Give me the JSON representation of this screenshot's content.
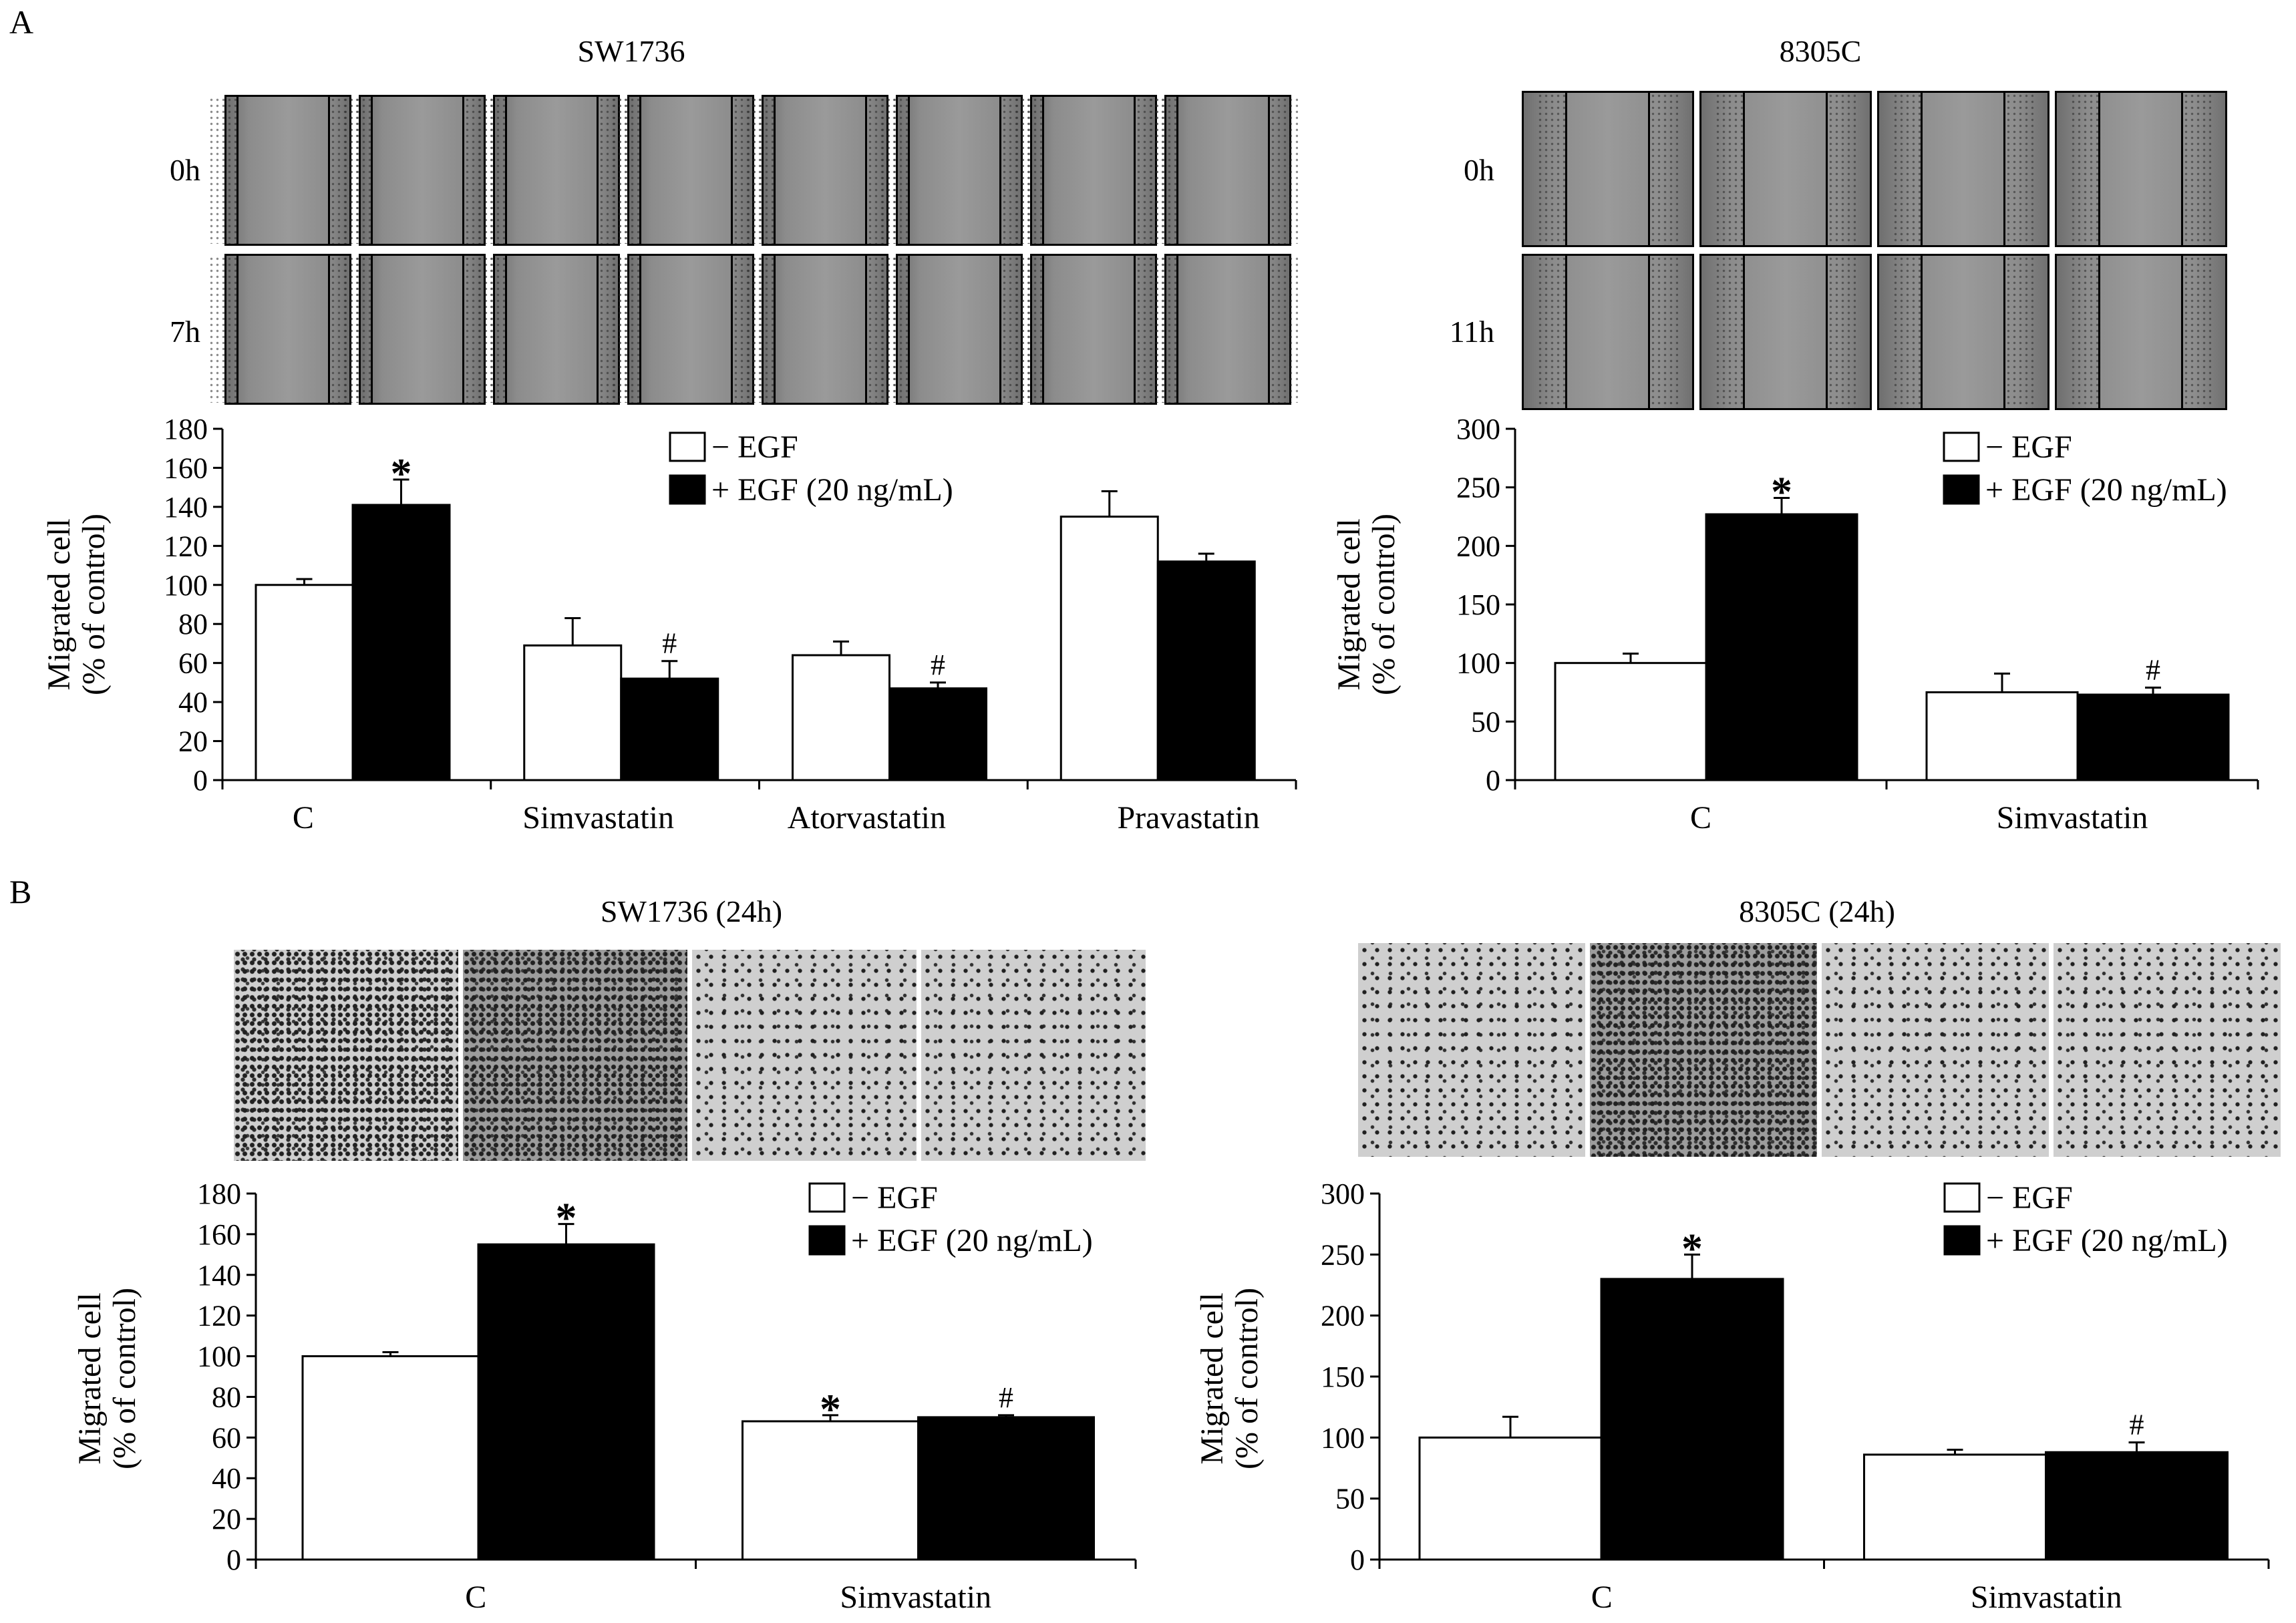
{
  "figure": {
    "panel_A_label": "A",
    "panel_B_label": "B"
  },
  "panelA": {
    "left_title": "SW1736",
    "right_title": "8305C",
    "left_time_top": "0h",
    "left_time_bottom": "7h",
    "right_time_top": "0h",
    "right_time_bottom": "11h"
  },
  "panelB": {
    "left_title": "SW1736 (24h)",
    "right_title": "8305C (24h)"
  },
  "chart_data": [
    {
      "id": "A-left",
      "type": "bar",
      "title": "",
      "ylabel_line1": "Migrated cell",
      "ylabel_line2": "(% of control)",
      "xlabel": "",
      "ylim": [
        0,
        180
      ],
      "yticks": [
        0,
        20,
        40,
        60,
        80,
        100,
        120,
        140,
        160,
        180
      ],
      "categories": [
        "C",
        "Simvastatin",
        "Atorvastatin",
        "Pravastatin"
      ],
      "series": [
        {
          "name": "− EGF",
          "color": "#ffffff",
          "values": [
            100,
            69,
            64,
            135
          ],
          "errors": [
            3,
            14,
            7,
            13
          ],
          "marks": [
            "",
            "",
            "",
            ""
          ]
        },
        {
          "name": "+ EGF (20 ng/mL)",
          "color": "#000000",
          "values": [
            141,
            52,
            47,
            112
          ],
          "errors": [
            13,
            9,
            3,
            4
          ],
          "marks": [
            "*",
            "#",
            "#",
            ""
          ]
        }
      ],
      "legend": "top-right"
    },
    {
      "id": "A-right",
      "type": "bar",
      "title": "",
      "ylabel_line1": "Migrated cell",
      "ylabel_line2": "(% of control)",
      "xlabel": "",
      "ylim": [
        0,
        300
      ],
      "yticks": [
        0,
        50,
        100,
        150,
        200,
        250,
        300
      ],
      "categories": [
        "C",
        "Simvastatin"
      ],
      "series": [
        {
          "name": "− EGF",
          "color": "#ffffff",
          "values": [
            100,
            75
          ],
          "errors": [
            8,
            16
          ],
          "marks": [
            "",
            ""
          ]
        },
        {
          "name": "+ EGF (20 ng/mL)",
          "color": "#000000",
          "values": [
            227,
            73
          ],
          "errors": [
            14,
            6
          ],
          "marks": [
            "*",
            "#"
          ]
        }
      ],
      "legend": "top-right"
    },
    {
      "id": "B-left",
      "type": "bar",
      "title": "",
      "ylabel_line1": "Migrated cell",
      "ylabel_line2": "(% of control)",
      "xlabel": "",
      "ylim": [
        0,
        180
      ],
      "yticks": [
        0,
        20,
        40,
        60,
        80,
        100,
        120,
        140,
        160,
        180
      ],
      "categories": [
        "C",
        "Simvastatin"
      ],
      "series": [
        {
          "name": "− EGF",
          "color": "#ffffff",
          "values": [
            100,
            68
          ],
          "errors": [
            2,
            3
          ],
          "marks": [
            "",
            "*"
          ]
        },
        {
          "name": "+ EGF (20 ng/mL)",
          "color": "#000000",
          "values": [
            155,
            70
          ],
          "errors": [
            10,
            1
          ],
          "marks": [
            "*",
            "#"
          ]
        }
      ],
      "legend": "top-right"
    },
    {
      "id": "B-right",
      "type": "bar",
      "title": "",
      "ylabel_line1": "Migrated cell",
      "ylabel_line2": "(% of control)",
      "xlabel": "",
      "ylim": [
        0,
        300
      ],
      "yticks": [
        0,
        50,
        100,
        150,
        200,
        250,
        300
      ],
      "categories": [
        "C",
        "Simvastatin"
      ],
      "series": [
        {
          "name": "− EGF",
          "color": "#ffffff",
          "values": [
            100,
            86
          ],
          "errors": [
            17,
            4
          ],
          "marks": [
            "",
            ""
          ]
        },
        {
          "name": "+ EGF (20 ng/mL)",
          "color": "#000000",
          "values": [
            230,
            88
          ],
          "errors": [
            20,
            8
          ],
          "marks": [
            "*",
            "#"
          ]
        }
      ],
      "legend": "top-right"
    }
  ]
}
